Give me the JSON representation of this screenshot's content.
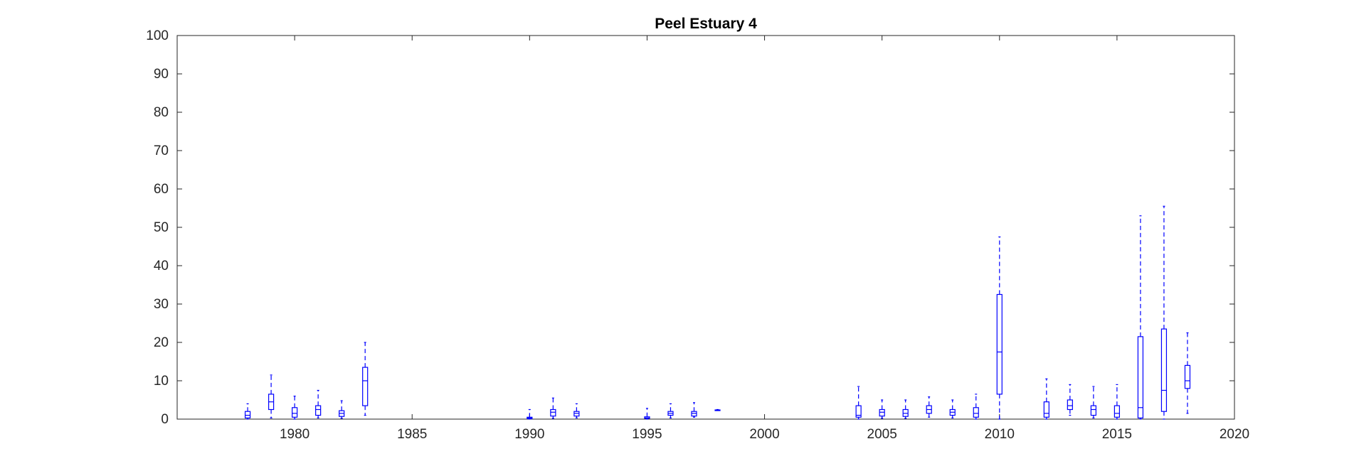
{
  "chart_data": {
    "type": "boxplot",
    "title": "Peel Estuary 4",
    "xlabel": "",
    "ylabel": "",
    "xlim": [
      1975,
      2020
    ],
    "ylim": [
      0,
      100
    ],
    "xticks": [
      1980,
      1985,
      1990,
      1995,
      2000,
      2005,
      2010,
      2015,
      2020
    ],
    "yticks": [
      0,
      10,
      20,
      30,
      40,
      50,
      60,
      70,
      80,
      90,
      100
    ],
    "grid": false,
    "box_color": "#0000ff",
    "boxes": [
      {
        "x": 1978,
        "whisker_low": 0,
        "q1": 0.3,
        "median": 1.0,
        "q3": 2.0,
        "whisker_high": 4.0
      },
      {
        "x": 1979,
        "whisker_low": 0.3,
        "q1": 2.5,
        "median": 4.5,
        "q3": 6.5,
        "whisker_high": 11.5
      },
      {
        "x": 1980,
        "whisker_low": 0,
        "q1": 0.5,
        "median": 1.5,
        "q3": 3.0,
        "whisker_high": 6.0
      },
      {
        "x": 1981,
        "whisker_low": 0.3,
        "q1": 1.0,
        "median": 2.5,
        "q3": 3.5,
        "whisker_high": 7.5
      },
      {
        "x": 1982,
        "whisker_low": 0.2,
        "q1": 0.7,
        "median": 1.5,
        "q3": 2.2,
        "whisker_high": 4.8
      },
      {
        "x": 1983,
        "whisker_low": 1.0,
        "q1": 3.5,
        "median": 10.0,
        "q3": 13.5,
        "whisker_high": 20.0
      },
      {
        "x": 1990,
        "whisker_low": 0,
        "q1": 0.1,
        "median": 0.3,
        "q3": 0.5,
        "whisker_high": 2.5
      },
      {
        "x": 1991,
        "whisker_low": 0.2,
        "q1": 0.8,
        "median": 1.8,
        "q3": 2.5,
        "whisker_high": 5.5
      },
      {
        "x": 1992,
        "whisker_low": 0.3,
        "q1": 0.8,
        "median": 1.5,
        "q3": 2.0,
        "whisker_high": 4.0
      },
      {
        "x": 1995,
        "whisker_low": 0,
        "q1": 0.2,
        "median": 0.3,
        "q3": 0.6,
        "whisker_high": 2.8
      },
      {
        "x": 1996,
        "whisker_low": 0.3,
        "q1": 1.0,
        "median": 1.5,
        "q3": 2.0,
        "whisker_high": 4.0
      },
      {
        "x": 1997,
        "whisker_low": 0.5,
        "q1": 0.8,
        "median": 1.5,
        "q3": 2.0,
        "whisker_high": 4.3
      },
      {
        "x": 1998,
        "whisker_low": 2.3,
        "q1": 2.3,
        "median": 2.4,
        "q3": 2.4,
        "whisker_high": 2.5
      },
      {
        "x": 2004,
        "whisker_low": 0,
        "q1": 0.5,
        "median": 1.0,
        "q3": 3.5,
        "whisker_high": 8.5
      },
      {
        "x": 2005,
        "whisker_low": 0.2,
        "q1": 0.8,
        "median": 1.8,
        "q3": 2.5,
        "whisker_high": 5.0
      },
      {
        "x": 2006,
        "whisker_low": 0.2,
        "q1": 0.7,
        "median": 1.5,
        "q3": 2.5,
        "whisker_high": 5.0
      },
      {
        "x": 2007,
        "whisker_low": 0.5,
        "q1": 1.5,
        "median": 2.5,
        "q3": 3.5,
        "whisker_high": 5.8
      },
      {
        "x": 2008,
        "whisker_low": 0.3,
        "q1": 1.0,
        "median": 1.8,
        "q3": 2.5,
        "whisker_high": 5.0
      },
      {
        "x": 2009,
        "whisker_low": 0,
        "q1": 0.5,
        "median": 1.5,
        "q3": 3.0,
        "whisker_high": 6.5
      },
      {
        "x": 2010,
        "whisker_low": 0,
        "q1": 6.5,
        "median": 17.5,
        "q3": 32.5,
        "whisker_high": 47.5
      },
      {
        "x": 2012,
        "whisker_low": 0,
        "q1": 0.5,
        "median": 1.5,
        "q3": 4.5,
        "whisker_high": 10.5
      },
      {
        "x": 2013,
        "whisker_low": 1.0,
        "q1": 2.5,
        "median": 3.5,
        "q3": 5.0,
        "whisker_high": 9.0
      },
      {
        "x": 2014,
        "whisker_low": 0.3,
        "q1": 1.0,
        "median": 2.5,
        "q3": 3.5,
        "whisker_high": 8.5
      },
      {
        "x": 2015,
        "whisker_low": 0,
        "q1": 0.5,
        "median": 1.5,
        "q3": 3.5,
        "whisker_high": 9.0
      },
      {
        "x": 2016,
        "whisker_low": 0,
        "q1": 0.3,
        "median": 3.0,
        "q3": 21.5,
        "whisker_high": 53.0
      },
      {
        "x": 2017,
        "whisker_low": 0,
        "q1": 2.0,
        "median": 7.5,
        "q3": 23.5,
        "whisker_high": 55.5
      },
      {
        "x": 2018,
        "whisker_low": 1.5,
        "q1": 8.0,
        "median": 10.0,
        "q3": 14.0,
        "whisker_high": 22.5
      }
    ]
  }
}
